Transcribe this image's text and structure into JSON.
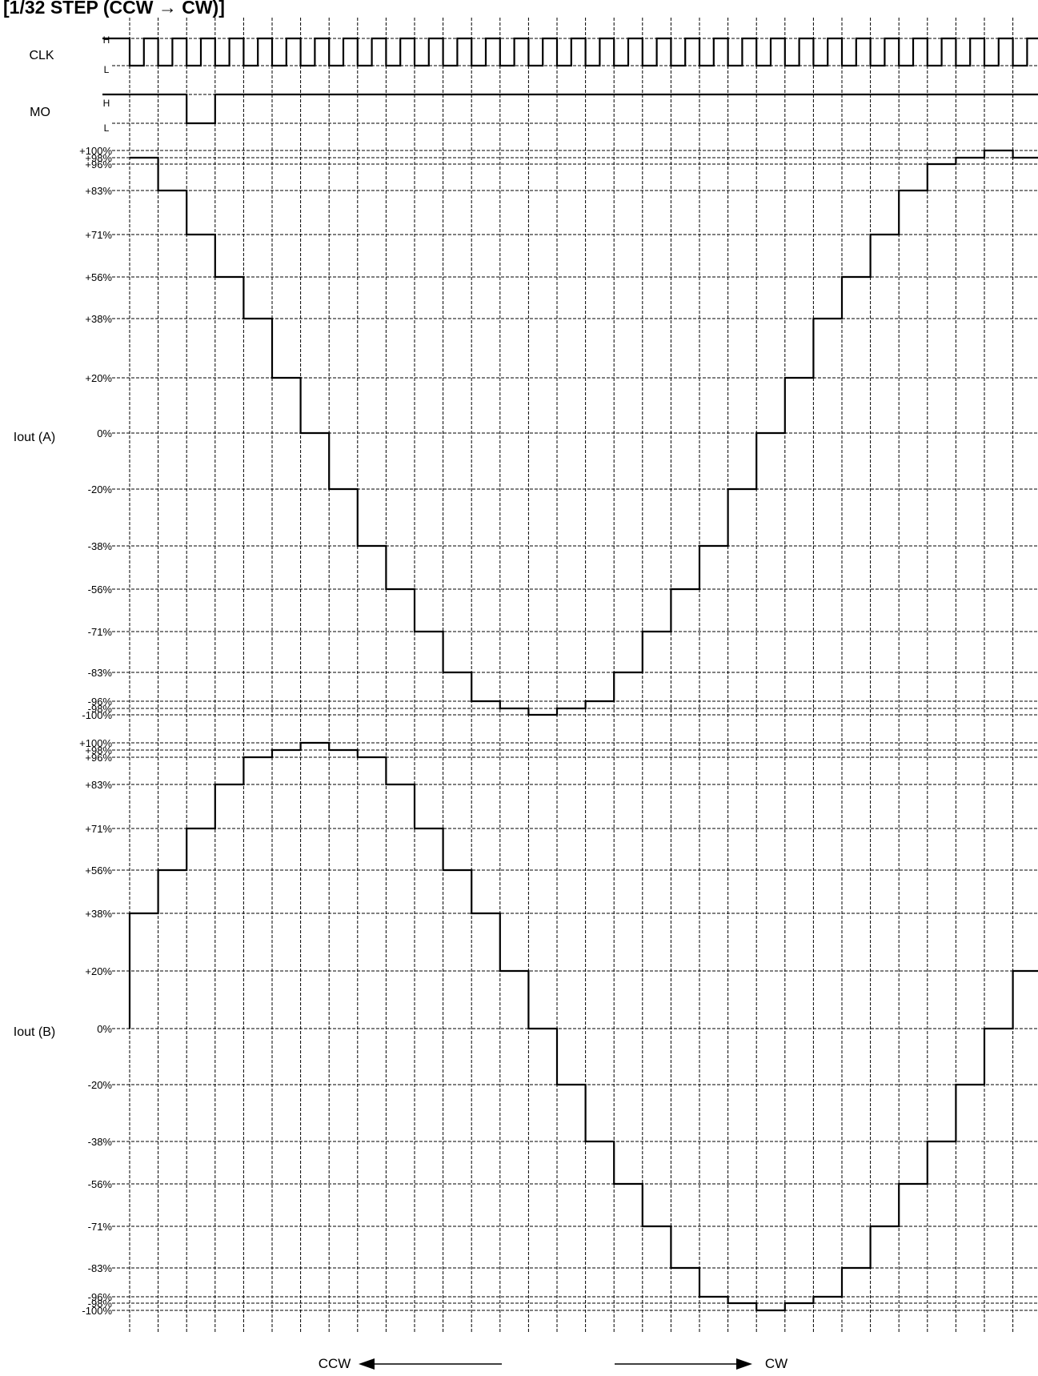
{
  "header": {
    "title": "[1/32 STEP (CCW → CW)]"
  },
  "clk": {
    "name": "CLK",
    "high": "H",
    "low": "L"
  },
  "mo": {
    "name": "MO",
    "high": "H",
    "low": "L"
  },
  "iout_a": {
    "name": "Iout (A)",
    "ticks": [
      "+100%",
      "+98%",
      "+96%",
      "+83%",
      "+71%",
      "+56%",
      "+38%",
      "+20%",
      "0%",
      "-20%",
      "-38%",
      "-56%",
      "-71%",
      "-83%",
      "-96%",
      "-98%",
      "-100%"
    ]
  },
  "iout_b": {
    "name": "Iout (B)",
    "ticks": [
      "+100%",
      "+98%",
      "+96%",
      "+83%",
      "+71%",
      "+56%",
      "+38%",
      "+20%",
      "0%",
      "-20%",
      "-38%",
      "-56%",
      "-71%",
      "-83%",
      "-96%",
      "-98%",
      "-100%"
    ]
  },
  "direction": {
    "left": "CCW",
    "right": "CW"
  },
  "chart_data": {
    "type": "line",
    "x_unit": "clock step",
    "clk_cycles": 32,
    "mo_low_steps": [
      2,
      3
    ],
    "series": [
      {
        "name": "Iout (A)",
        "values": [
          98,
          83,
          71,
          56,
          38,
          20,
          0,
          -20,
          -38,
          -56,
          -71,
          -83,
          -96,
          -98,
          -100,
          -98,
          -96,
          -83,
          -71,
          -56,
          -38,
          -20,
          0,
          20,
          38,
          56,
          71,
          83,
          96,
          98,
          100,
          98
        ]
      },
      {
        "name": "Iout (B)",
        "values": [
          38,
          56,
          71,
          83,
          96,
          98,
          100,
          98,
          96,
          83,
          71,
          56,
          38,
          20,
          0,
          -20,
          -38,
          -56,
          -71,
          -83,
          -96,
          -98,
          -100,
          -98,
          -96,
          -83,
          -71,
          -56,
          -38,
          -20,
          0,
          20
        ]
      }
    ]
  }
}
